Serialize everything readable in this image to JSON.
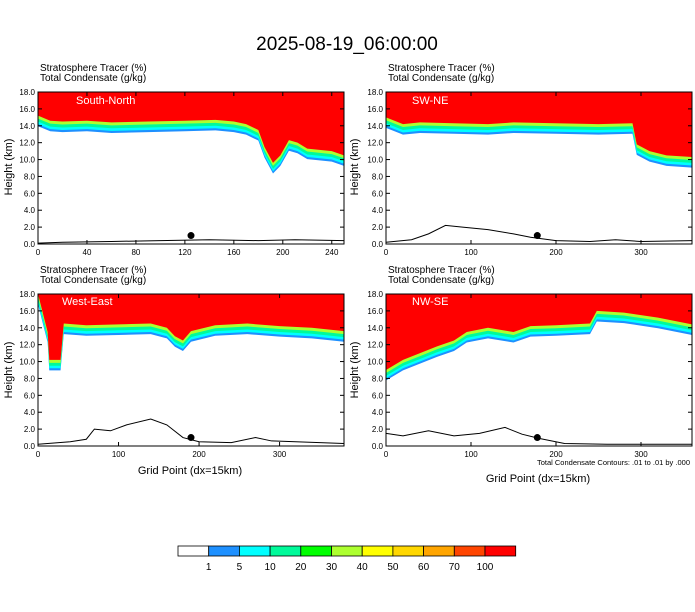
{
  "figure": {
    "title": "2025-08-19_06:00:00",
    "footnote": "Total Condensate Contours: .01 to .01 by .000",
    "colorbar": {
      "colors": [
        "#ffffff",
        "#1e90ff",
        "#00ffff",
        "#00fa9a",
        "#00ff00",
        "#adff2f",
        "#ffff00",
        "#ffd700",
        "#ffa500",
        "#ff4500",
        "#ff0000"
      ],
      "labels": [
        "1",
        "5",
        "10",
        "20",
        "30",
        "40",
        "50",
        "60",
        "70",
        "100"
      ]
    }
  },
  "chart_data": [
    {
      "type": "heatmap",
      "panel_label": "South-North",
      "field_line1": "Stratosphere Tracer    (%)",
      "field_line2": "Total Condensate    (g/kg)",
      "ylabel": "Height (km)",
      "xlabel": "",
      "xlim": [
        0,
        250
      ],
      "ylim": [
        0,
        18
      ],
      "xticks": [
        "0",
        "40",
        "80",
        "120",
        "160",
        "200",
        "240"
      ],
      "xtick_values": [
        0,
        40,
        80,
        120,
        160,
        200,
        240
      ],
      "yticks": [
        "0.0",
        "2.0",
        "4.0",
        "6.0",
        "8.0",
        "10.0",
        "12.0",
        "14.0",
        "16.0",
        "18.0"
      ],
      "tracer_boundary_km": [
        [
          0,
          15.2
        ],
        [
          10,
          14.6
        ],
        [
          20,
          14.5
        ],
        [
          40,
          14.6
        ],
        [
          60,
          14.4
        ],
        [
          90,
          14.5
        ],
        [
          120,
          14.6
        ],
        [
          145,
          14.7
        ],
        [
          160,
          14.5
        ],
        [
          170,
          14.2
        ],
        [
          180,
          13.5
        ],
        [
          185,
          11.5
        ],
        [
          192,
          9.6
        ],
        [
          198,
          10.5
        ],
        [
          205,
          12.3
        ],
        [
          212,
          12.0
        ],
        [
          220,
          11.3
        ],
        [
          240,
          11.0
        ],
        [
          250,
          10.5
        ]
      ],
      "terrain_km": [
        [
          0,
          0.1
        ],
        [
          20,
          0.2
        ],
        [
          60,
          0.3
        ],
        [
          100,
          0.4
        ],
        [
          140,
          0.5
        ],
        [
          180,
          0.4
        ],
        [
          210,
          0.5
        ],
        [
          250,
          0.4
        ]
      ],
      "marker": [
        125,
        1.0
      ]
    },
    {
      "type": "heatmap",
      "panel_label": "SW-NE",
      "field_line1": "Stratosphere Tracer    (%)",
      "field_line2": "Total Condensate    (g/kg)",
      "ylabel": "Height (km)",
      "xlabel": "",
      "xlim": [
        0,
        360
      ],
      "ylim": [
        0,
        18
      ],
      "xticks": [
        "0",
        "100",
        "200",
        "300"
      ],
      "xtick_values": [
        0,
        100,
        200,
        300
      ],
      "yticks": [
        "0.0",
        "2.0",
        "4.0",
        "6.0",
        "8.0",
        "10.0",
        "12.0",
        "14.0",
        "16.0",
        "18.0"
      ],
      "tracer_boundary_km": [
        [
          0,
          15.0
        ],
        [
          20,
          14.2
        ],
        [
          40,
          14.4
        ],
        [
          80,
          14.3
        ],
        [
          120,
          14.2
        ],
        [
          150,
          14.4
        ],
        [
          200,
          14.3
        ],
        [
          250,
          14.2
        ],
        [
          290,
          14.3
        ],
        [
          295,
          11.8
        ],
        [
          310,
          11.0
        ],
        [
          330,
          10.5
        ],
        [
          360,
          10.3
        ]
      ],
      "terrain_km": [
        [
          0,
          0.2
        ],
        [
          30,
          0.5
        ],
        [
          50,
          1.2
        ],
        [
          70,
          2.2
        ],
        [
          90,
          2.0
        ],
        [
          120,
          1.7
        ],
        [
          150,
          1.2
        ],
        [
          170,
          0.8
        ],
        [
          200,
          0.4
        ],
        [
          240,
          0.3
        ],
        [
          270,
          0.5
        ],
        [
          300,
          0.3
        ],
        [
          360,
          0.4
        ]
      ],
      "marker": [
        178,
        1.0
      ]
    },
    {
      "type": "heatmap",
      "panel_label": "West-East",
      "field_line1": "Stratosphere Tracer    (%)",
      "field_line2": "Total Condensate    (g/kg)",
      "ylabel": "Height (km)",
      "xlabel": "Grid Point (dx=15km)",
      "xlim": [
        0,
        380
      ],
      "ylim": [
        0,
        18
      ],
      "xticks": [
        "0",
        "100",
        "200",
        "300"
      ],
      "xtick_values": [
        0,
        100,
        200,
        300
      ],
      "yticks": [
        "0.0",
        "2.0",
        "4.0",
        "6.0",
        "8.0",
        "10.0",
        "12.0",
        "14.0",
        "16.0",
        "18.0"
      ],
      "tracer_boundary_km": [
        [
          0,
          18.0
        ],
        [
          12,
          13.5
        ],
        [
          14,
          10.2
        ],
        [
          28,
          10.2
        ],
        [
          32,
          14.5
        ],
        [
          60,
          14.3
        ],
        [
          100,
          14.4
        ],
        [
          140,
          14.5
        ],
        [
          160,
          14.0
        ],
        [
          170,
          13.0
        ],
        [
          180,
          12.5
        ],
        [
          190,
          13.6
        ],
        [
          220,
          14.3
        ],
        [
          260,
          14.5
        ],
        [
          300,
          14.2
        ],
        [
          340,
          14.0
        ],
        [
          380,
          13.6
        ]
      ],
      "terrain_km": [
        [
          0,
          0.2
        ],
        [
          40,
          0.5
        ],
        [
          60,
          0.8
        ],
        [
          70,
          2.0
        ],
        [
          90,
          1.8
        ],
        [
          110,
          2.5
        ],
        [
          140,
          3.2
        ],
        [
          160,
          2.5
        ],
        [
          180,
          1.0
        ],
        [
          200,
          0.5
        ],
        [
          240,
          0.4
        ],
        [
          270,
          1.0
        ],
        [
          290,
          0.6
        ],
        [
          380,
          0.3
        ]
      ],
      "marker": [
        190,
        1.0
      ]
    },
    {
      "type": "heatmap",
      "panel_label": "NW-SE",
      "field_line1": "Stratosphere Tracer    (%)",
      "field_line2": "Total Condensate    (g/kg)",
      "ylabel": "Height (km)",
      "xlabel": "Grid Point (dx=15km)",
      "xlim": [
        0,
        360
      ],
      "ylim": [
        0,
        18
      ],
      "xticks": [
        "0",
        "100",
        "200",
        "300"
      ],
      "xtick_values": [
        0,
        100,
        200,
        300
      ],
      "yticks": [
        "0.0",
        "2.0",
        "4.0",
        "6.0",
        "8.0",
        "10.0",
        "12.0",
        "14.0",
        "16.0",
        "18.0"
      ],
      "tracer_boundary_km": [
        [
          0,
          9.0
        ],
        [
          20,
          10.2
        ],
        [
          40,
          11.0
        ],
        [
          60,
          11.8
        ],
        [
          80,
          12.5
        ],
        [
          95,
          13.5
        ],
        [
          120,
          14.0
        ],
        [
          150,
          13.5
        ],
        [
          170,
          14.2
        ],
        [
          200,
          14.3
        ],
        [
          240,
          14.5
        ],
        [
          248,
          16.0
        ],
        [
          280,
          15.8
        ],
        [
          320,
          15.2
        ],
        [
          360,
          14.4
        ]
      ],
      "terrain_km": [
        [
          0,
          1.5
        ],
        [
          20,
          1.2
        ],
        [
          50,
          1.8
        ],
        [
          80,
          1.2
        ],
        [
          110,
          1.5
        ],
        [
          140,
          2.2
        ],
        [
          160,
          1.4
        ],
        [
          180,
          0.9
        ],
        [
          210,
          0.3
        ],
        [
          260,
          0.2
        ],
        [
          360,
          0.2
        ]
      ],
      "marker": [
        178,
        1.0
      ]
    }
  ]
}
